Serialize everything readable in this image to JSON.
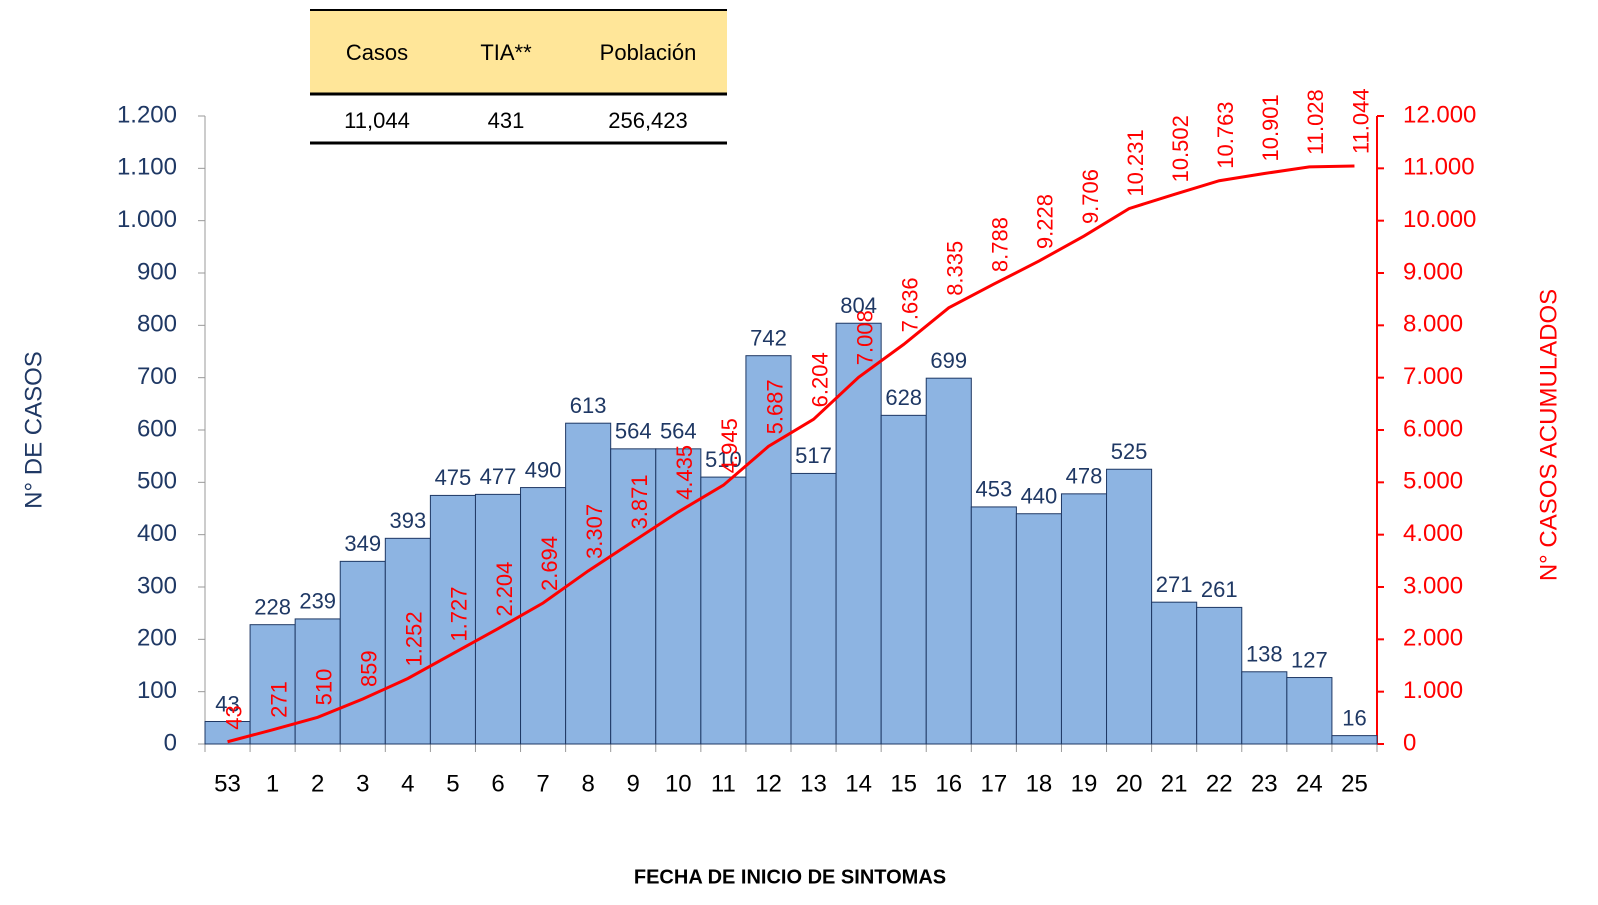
{
  "chart_data": {
    "type": "bar",
    "categories": [
      "53",
      "1",
      "2",
      "3",
      "4",
      "5",
      "6",
      "7",
      "8",
      "9",
      "10",
      "11",
      "12",
      "13",
      "14",
      "15",
      "16",
      "17",
      "18",
      "19",
      "20",
      "21",
      "22",
      "23",
      "24",
      "25"
    ],
    "series": [
      {
        "color": "#8db4e2",
        "values": [
          43,
          228,
          239,
          349,
          393,
          475,
          477,
          490,
          613,
          564,
          564,
          510,
          742,
          517,
          804,
          628,
          699,
          453,
          440,
          478,
          525,
          271,
          261,
          138,
          127,
          16
        ]
      },
      {
        "type": "line",
        "axis": "y2",
        "color": "#ff0000",
        "values": [
          43,
          271,
          510,
          859,
          1252,
          1727,
          2204,
          2694,
          3307,
          3871,
          4435,
          4945,
          5687,
          6204,
          7008,
          7636,
          8335,
          8788,
          9228,
          9706,
          10231,
          10502,
          10763,
          10901,
          11028,
          11044
        ],
        "value_labels": [
          "43",
          "271",
          "510",
          "859",
          "1.252",
          "1.727",
          "2.204",
          "2.694",
          "3.307",
          "3.871",
          "4.435",
          "4.945",
          "5.687",
          "6.204",
          "7.008",
          "7.636",
          "8.335",
          "8.788",
          "9.228",
          "9.706",
          "10.231",
          "10.502",
          "10.763",
          "10.901",
          "11.028",
          "11.044"
        ]
      }
    ],
    "ylim": [
      0,
      1200
    ],
    "yticks": [
      0,
      100,
      200,
      300,
      400,
      500,
      600,
      700,
      800,
      900,
      {
        "value": 1000,
        "label": "1.000"
      },
      {
        "value": 1100,
        "label": "1.100"
      },
      {
        "value": 1200,
        "label": "1.200"
      }
    ],
    "y2lim": [
      0,
      12000
    ],
    "y2ticks": [
      0,
      {
        "value": 1000,
        "label": "1.000"
      },
      {
        "value": 2000,
        "label": "2.000"
      },
      {
        "value": 3000,
        "label": "3.000"
      },
      {
        "value": 4000,
        "label": "4.000"
      },
      {
        "value": 5000,
        "label": "5.000"
      },
      {
        "value": 6000,
        "label": "6.000"
      },
      {
        "value": 7000,
        "label": "7.000"
      },
      {
        "value": 8000,
        "label": "8.000"
      },
      {
        "value": 9000,
        "label": "9.000"
      },
      {
        "value": 10000,
        "label": "10.000"
      },
      {
        "value": 11000,
        "label": "11.000"
      },
      {
        "value": 12000,
        "label": "12.000"
      }
    ],
    "y_label": "N° DE CASOS",
    "y2_label": "N° CASOS ACUMULADOS",
    "x_label": "FECHA DE INICIO DE SINTOMAS",
    "grid": false
  },
  "table": {
    "headers": [
      "Casos",
      "TIA**",
      "Población"
    ],
    "rows": [
      [
        "11,044",
        "431",
        "256,423"
      ]
    ]
  }
}
